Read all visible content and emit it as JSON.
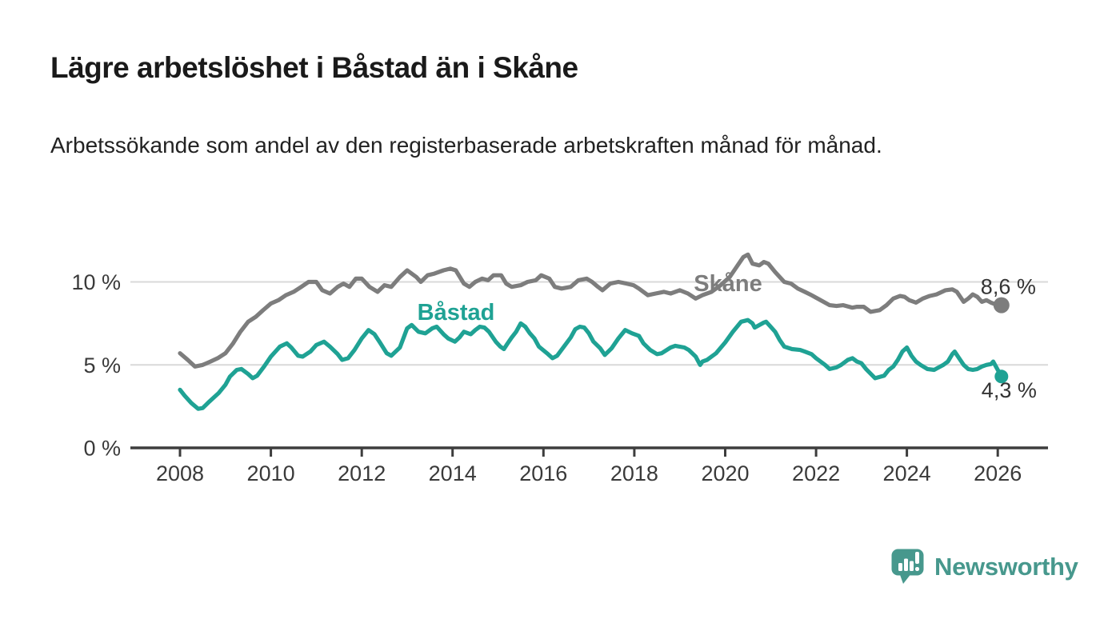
{
  "header": {
    "title": "Lägre arbetslöshet i Båstad än i Skåne",
    "subtitle": "Arbetssökande som andel av den registerbaserade arbetskraften månad för månad."
  },
  "footer": {
    "brand": "Newsworthy"
  },
  "colors": {
    "title": "#1a1a1a",
    "subtitle": "#222222",
    "axis": "#3d3d3d",
    "gridline": "#d9d9d9",
    "tick_text": "#3a3a3a",
    "skane_line": "#7d7d7d",
    "bastad_line": "#1fa294",
    "value_label": "#333333",
    "brand_teal": "#47988d"
  },
  "chart_data": {
    "type": "line",
    "title": "Lägre arbetslöshet i Båstad än i Skåne",
    "subtitle": "Arbetssökande som andel av den registerbaserade arbetskraften månad för månad.",
    "grid": true,
    "legend_position": "inline-labels",
    "x_axis": {
      "ticks": [
        2008,
        2010,
        2012,
        2014,
        2016,
        2018,
        2020,
        2022,
        2024,
        2026
      ],
      "range": [
        2006.9,
        2027.1
      ]
    },
    "y_axis": {
      "ticks": [
        0,
        5,
        10
      ],
      "tick_labels": [
        "0 %",
        "5 %",
        "10 %"
      ],
      "gridlines": [
        5,
        10
      ],
      "range": [
        0,
        12
      ],
      "unit": "%"
    },
    "series": [
      {
        "name": "Skåne",
        "color": "#7d7d7d",
        "end_label": "8,6 %",
        "end_value": 8.6,
        "points": [
          [
            2008.0,
            5.7
          ],
          [
            2008.17,
            5.3
          ],
          [
            2008.33,
            4.9
          ],
          [
            2008.5,
            5.0
          ],
          [
            2008.67,
            5.2
          ],
          [
            2008.83,
            5.4
          ],
          [
            2009.0,
            5.7
          ],
          [
            2009.17,
            6.3
          ],
          [
            2009.33,
            7.0
          ],
          [
            2009.5,
            7.6
          ],
          [
            2009.67,
            7.9
          ],
          [
            2009.83,
            8.3
          ],
          [
            2010.0,
            8.7
          ],
          [
            2010.17,
            8.9
          ],
          [
            2010.33,
            9.2
          ],
          [
            2010.5,
            9.4
          ],
          [
            2010.67,
            9.7
          ],
          [
            2010.83,
            10.0
          ],
          [
            2011.0,
            10.0
          ],
          [
            2011.13,
            9.5
          ],
          [
            2011.3,
            9.3
          ],
          [
            2011.47,
            9.7
          ],
          [
            2011.6,
            9.9
          ],
          [
            2011.73,
            9.7
          ],
          [
            2011.87,
            10.2
          ],
          [
            2012.0,
            10.2
          ],
          [
            2012.17,
            9.7
          ],
          [
            2012.35,
            9.4
          ],
          [
            2012.5,
            9.8
          ],
          [
            2012.65,
            9.7
          ],
          [
            2012.84,
            10.3
          ],
          [
            2013.0,
            10.7
          ],
          [
            2013.2,
            10.3
          ],
          [
            2013.3,
            10.0
          ],
          [
            2013.45,
            10.4
          ],
          [
            2013.6,
            10.5
          ],
          [
            2013.8,
            10.7
          ],
          [
            2013.95,
            10.8
          ],
          [
            2014.07,
            10.7
          ],
          [
            2014.25,
            9.9
          ],
          [
            2014.37,
            9.7
          ],
          [
            2014.5,
            10.0
          ],
          [
            2014.65,
            10.2
          ],
          [
            2014.78,
            10.1
          ],
          [
            2014.9,
            10.4
          ],
          [
            2015.07,
            10.4
          ],
          [
            2015.18,
            9.9
          ],
          [
            2015.3,
            9.7
          ],
          [
            2015.5,
            9.8
          ],
          [
            2015.65,
            10.0
          ],
          [
            2015.83,
            10.1
          ],
          [
            2015.95,
            10.4
          ],
          [
            2016.13,
            10.2
          ],
          [
            2016.25,
            9.7
          ],
          [
            2016.4,
            9.6
          ],
          [
            2016.6,
            9.7
          ],
          [
            2016.77,
            10.1
          ],
          [
            2016.95,
            10.2
          ],
          [
            2017.07,
            10.0
          ],
          [
            2017.2,
            9.7
          ],
          [
            2017.3,
            9.5
          ],
          [
            2017.47,
            9.9
          ],
          [
            2017.65,
            10.0
          ],
          [
            2017.83,
            9.9
          ],
          [
            2017.98,
            9.8
          ],
          [
            2018.1,
            9.6
          ],
          [
            2018.3,
            9.2
          ],
          [
            2018.47,
            9.3
          ],
          [
            2018.65,
            9.4
          ],
          [
            2018.8,
            9.3
          ],
          [
            2019.0,
            9.5
          ],
          [
            2019.18,
            9.3
          ],
          [
            2019.35,
            9.0
          ],
          [
            2019.5,
            9.2
          ],
          [
            2019.7,
            9.4
          ],
          [
            2019.9,
            9.8
          ],
          [
            2020.1,
            10.3
          ],
          [
            2020.25,
            10.9
          ],
          [
            2020.4,
            11.5
          ],
          [
            2020.5,
            11.65
          ],
          [
            2020.6,
            11.1
          ],
          [
            2020.75,
            11.0
          ],
          [
            2020.85,
            11.2
          ],
          [
            2020.95,
            11.1
          ],
          [
            2021.1,
            10.6
          ],
          [
            2021.3,
            10.0
          ],
          [
            2021.45,
            9.9
          ],
          [
            2021.6,
            9.6
          ],
          [
            2021.75,
            9.4
          ],
          [
            2021.9,
            9.2
          ],
          [
            2022.1,
            8.9
          ],
          [
            2022.3,
            8.6
          ],
          [
            2022.45,
            8.55
          ],
          [
            2022.6,
            8.6
          ],
          [
            2022.8,
            8.45
          ],
          [
            2022.9,
            8.5
          ],
          [
            2023.05,
            8.5
          ],
          [
            2023.2,
            8.2
          ],
          [
            2023.4,
            8.3
          ],
          [
            2023.55,
            8.6
          ],
          [
            2023.7,
            9.0
          ],
          [
            2023.85,
            9.15
          ],
          [
            2023.95,
            9.1
          ],
          [
            2024.05,
            8.9
          ],
          [
            2024.2,
            8.75
          ],
          [
            2024.35,
            9.0
          ],
          [
            2024.5,
            9.15
          ],
          [
            2024.65,
            9.25
          ],
          [
            2024.85,
            9.5
          ],
          [
            2025.0,
            9.55
          ],
          [
            2025.1,
            9.4
          ],
          [
            2025.25,
            8.8
          ],
          [
            2025.35,
            9.0
          ],
          [
            2025.45,
            9.25
          ],
          [
            2025.55,
            9.1
          ],
          [
            2025.65,
            8.8
          ],
          [
            2025.75,
            8.9
          ],
          [
            2025.85,
            8.75
          ],
          [
            2025.95,
            8.65
          ],
          [
            2026.08,
            8.6
          ]
        ]
      },
      {
        "name": "Båstad",
        "color": "#1fa294",
        "end_label": "4,3 %",
        "end_value": 4.3,
        "points": [
          [
            2008.0,
            3.5
          ],
          [
            2008.1,
            3.15
          ],
          [
            2008.25,
            2.7
          ],
          [
            2008.4,
            2.35
          ],
          [
            2008.5,
            2.4
          ],
          [
            2008.65,
            2.8
          ],
          [
            2008.85,
            3.3
          ],
          [
            2009.0,
            3.8
          ],
          [
            2009.1,
            4.3
          ],
          [
            2009.25,
            4.7
          ],
          [
            2009.35,
            4.75
          ],
          [
            2009.5,
            4.45
          ],
          [
            2009.6,
            4.2
          ],
          [
            2009.7,
            4.35
          ],
          [
            2009.85,
            4.9
          ],
          [
            2010.0,
            5.5
          ],
          [
            2010.2,
            6.1
          ],
          [
            2010.35,
            6.3
          ],
          [
            2010.45,
            6.05
          ],
          [
            2010.6,
            5.55
          ],
          [
            2010.7,
            5.5
          ],
          [
            2010.87,
            5.8
          ],
          [
            2011.0,
            6.2
          ],
          [
            2011.17,
            6.4
          ],
          [
            2011.3,
            6.1
          ],
          [
            2011.47,
            5.65
          ],
          [
            2011.57,
            5.3
          ],
          [
            2011.7,
            5.4
          ],
          [
            2011.84,
            5.9
          ],
          [
            2012.0,
            6.6
          ],
          [
            2012.15,
            7.1
          ],
          [
            2012.28,
            6.85
          ],
          [
            2012.4,
            6.35
          ],
          [
            2012.55,
            5.7
          ],
          [
            2012.65,
            5.55
          ],
          [
            2012.84,
            6.05
          ],
          [
            2013.0,
            7.2
          ],
          [
            2013.1,
            7.4
          ],
          [
            2013.25,
            7.0
          ],
          [
            2013.4,
            6.9
          ],
          [
            2013.55,
            7.2
          ],
          [
            2013.65,
            7.3
          ],
          [
            2013.8,
            6.85
          ],
          [
            2013.9,
            6.6
          ],
          [
            2014.05,
            6.4
          ],
          [
            2014.15,
            6.65
          ],
          [
            2014.25,
            7.0
          ],
          [
            2014.4,
            6.85
          ],
          [
            2014.5,
            7.1
          ],
          [
            2014.6,
            7.3
          ],
          [
            2014.7,
            7.25
          ],
          [
            2014.8,
            7.0
          ],
          [
            2014.95,
            6.4
          ],
          [
            2015.05,
            6.1
          ],
          [
            2015.13,
            5.95
          ],
          [
            2015.2,
            6.25
          ],
          [
            2015.3,
            6.65
          ],
          [
            2015.4,
            7.0
          ],
          [
            2015.5,
            7.5
          ],
          [
            2015.6,
            7.3
          ],
          [
            2015.7,
            6.9
          ],
          [
            2015.8,
            6.6
          ],
          [
            2015.9,
            6.1
          ],
          [
            2016.1,
            5.65
          ],
          [
            2016.2,
            5.4
          ],
          [
            2016.3,
            5.55
          ],
          [
            2016.45,
            6.1
          ],
          [
            2016.6,
            6.65
          ],
          [
            2016.7,
            7.15
          ],
          [
            2016.8,
            7.3
          ],
          [
            2016.9,
            7.25
          ],
          [
            2017.0,
            6.9
          ],
          [
            2017.1,
            6.4
          ],
          [
            2017.25,
            6.0
          ],
          [
            2017.35,
            5.6
          ],
          [
            2017.5,
            6.0
          ],
          [
            2017.65,
            6.6
          ],
          [
            2017.8,
            7.1
          ],
          [
            2017.95,
            6.9
          ],
          [
            2018.1,
            6.75
          ],
          [
            2018.2,
            6.3
          ],
          [
            2018.35,
            5.9
          ],
          [
            2018.5,
            5.65
          ],
          [
            2018.6,
            5.7
          ],
          [
            2018.8,
            6.05
          ],
          [
            2018.9,
            6.15
          ],
          [
            2019.1,
            6.05
          ],
          [
            2019.2,
            5.9
          ],
          [
            2019.35,
            5.5
          ],
          [
            2019.45,
            5.0
          ],
          [
            2019.5,
            5.2
          ],
          [
            2019.6,
            5.3
          ],
          [
            2019.8,
            5.7
          ],
          [
            2020.0,
            6.35
          ],
          [
            2020.17,
            7.0
          ],
          [
            2020.35,
            7.6
          ],
          [
            2020.5,
            7.7
          ],
          [
            2020.6,
            7.5
          ],
          [
            2020.65,
            7.25
          ],
          [
            2020.85,
            7.55
          ],
          [
            2020.9,
            7.6
          ],
          [
            2021.0,
            7.3
          ],
          [
            2021.1,
            7.0
          ],
          [
            2021.2,
            6.5
          ],
          [
            2021.3,
            6.1
          ],
          [
            2021.47,
            5.95
          ],
          [
            2021.65,
            5.9
          ],
          [
            2021.75,
            5.8
          ],
          [
            2021.9,
            5.65
          ],
          [
            2022.0,
            5.4
          ],
          [
            2022.2,
            5.0
          ],
          [
            2022.3,
            4.75
          ],
          [
            2022.45,
            4.85
          ],
          [
            2022.55,
            5.0
          ],
          [
            2022.7,
            5.3
          ],
          [
            2022.8,
            5.4
          ],
          [
            2022.9,
            5.2
          ],
          [
            2023.0,
            5.1
          ],
          [
            2023.1,
            4.75
          ],
          [
            2023.3,
            4.2
          ],
          [
            2023.5,
            4.35
          ],
          [
            2023.6,
            4.7
          ],
          [
            2023.7,
            4.9
          ],
          [
            2023.8,
            5.3
          ],
          [
            2023.9,
            5.8
          ],
          [
            2024.0,
            6.05
          ],
          [
            2024.1,
            5.55
          ],
          [
            2024.2,
            5.2
          ],
          [
            2024.3,
            5.0
          ],
          [
            2024.45,
            4.75
          ],
          [
            2024.6,
            4.7
          ],
          [
            2024.7,
            4.85
          ],
          [
            2024.8,
            5.0
          ],
          [
            2024.9,
            5.2
          ],
          [
            2025.0,
            5.65
          ],
          [
            2025.05,
            5.8
          ],
          [
            2025.15,
            5.4
          ],
          [
            2025.25,
            5.0
          ],
          [
            2025.35,
            4.75
          ],
          [
            2025.45,
            4.7
          ],
          [
            2025.55,
            4.75
          ],
          [
            2025.65,
            4.9
          ],
          [
            2025.75,
            5.0
          ],
          [
            2025.85,
            5.05
          ],
          [
            2025.9,
            5.2
          ],
          [
            2026.0,
            4.7
          ],
          [
            2026.08,
            4.3
          ]
        ]
      }
    ]
  }
}
